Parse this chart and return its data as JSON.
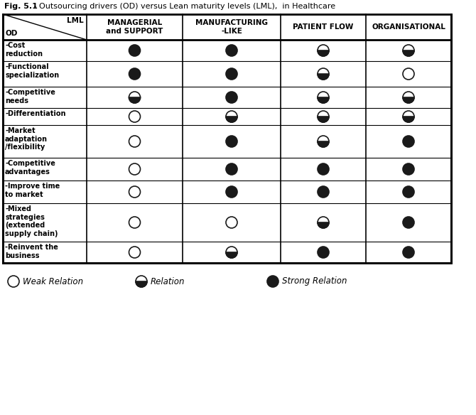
{
  "title_bold": "Fig. 5.1",
  "title_rest": " - Outsourcing drivers (OD) versus Lean maturity levels (LML),  in Healthcare",
  "col_headers": [
    "MANAGERIAL\nand SUPPORT",
    "MANUFACTURING\n-LIKE",
    "PATIENT FLOW",
    "ORGANISATIONAL"
  ],
  "row_labels": [
    "-Cost\nreduction",
    "-Functional\nspecialization",
    "-Competitive\nneeds",
    "-Differentiation",
    "-Market\nadaptation\n/flexibility",
    "-Competitive\nadvantages",
    "-Improve time\nto market",
    "-Mixed\nstrategies\n(extended\nsupply chain)",
    "-Reinvent the\nbusiness"
  ],
  "cells": [
    [
      "strong",
      "strong",
      "relation",
      "relation"
    ],
    [
      "strong",
      "strong",
      "relation",
      "weak"
    ],
    [
      "relation",
      "strong",
      "relation",
      "relation"
    ],
    [
      "weak",
      "relation",
      "relation",
      "relation"
    ],
    [
      "weak",
      "strong",
      "relation",
      "strong"
    ],
    [
      "weak",
      "strong",
      "strong",
      "strong"
    ],
    [
      "weak",
      "strong",
      "strong",
      "strong"
    ],
    [
      "weak",
      "weak",
      "relation",
      "strong"
    ],
    [
      "weak",
      "relation",
      "strong",
      "strong"
    ]
  ],
  "legend": [
    {
      "label": "Weak Relation",
      "type": "weak"
    },
    {
      "label": "Relation",
      "type": "relation"
    },
    {
      "label": "Strong Relation",
      "type": "strong"
    }
  ],
  "background": "#ffffff"
}
